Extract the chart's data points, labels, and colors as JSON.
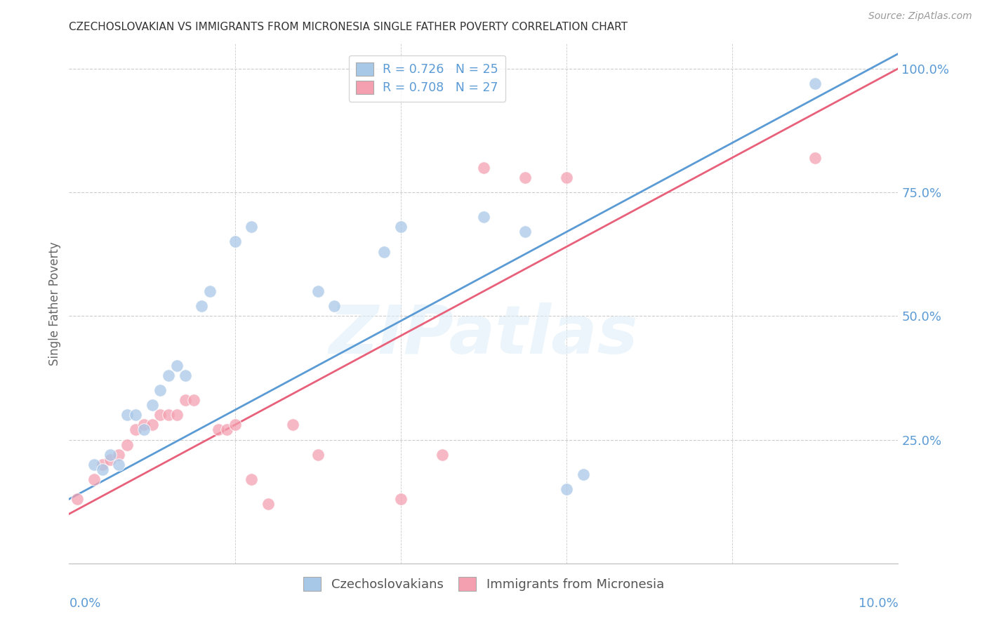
{
  "title": "CZECHOSLOVAKIAN VS IMMIGRANTS FROM MICRONESIA SINGLE FATHER POVERTY CORRELATION CHART",
  "source": "Source: ZipAtlas.com",
  "ylabel": "Single Father Poverty",
  "legend_blue": "R = 0.726   N = 25",
  "legend_pink": "R = 0.708   N = 27",
  "legend_blue_label": "Czechoslovakians",
  "legend_pink_label": "Immigrants from Micronesia",
  "watermark": "ZIPatlas",
  "blue_color": "#a8c8e8",
  "pink_color": "#f4a0b0",
  "blue_line_color": "#5b9bd5",
  "pink_line_color": "#e8607a",
  "right_axis_color": "#5b9bd5",
  "blue_scatter": [
    [
      0.003,
      0.2
    ],
    [
      0.004,
      0.19
    ],
    [
      0.005,
      0.22
    ],
    [
      0.006,
      0.2
    ],
    [
      0.007,
      0.3
    ],
    [
      0.008,
      0.3
    ],
    [
      0.009,
      0.27
    ],
    [
      0.01,
      0.32
    ],
    [
      0.011,
      0.35
    ],
    [
      0.012,
      0.38
    ],
    [
      0.013,
      0.4
    ],
    [
      0.014,
      0.38
    ],
    [
      0.016,
      0.52
    ],
    [
      0.017,
      0.55
    ],
    [
      0.02,
      0.65
    ],
    [
      0.022,
      0.68
    ],
    [
      0.03,
      0.55
    ],
    [
      0.032,
      0.52
    ],
    [
      0.038,
      0.63
    ],
    [
      0.04,
      0.68
    ],
    [
      0.05,
      0.7
    ],
    [
      0.055,
      0.67
    ],
    [
      0.06,
      0.15
    ],
    [
      0.062,
      0.18
    ],
    [
      0.09,
      0.97
    ]
  ],
  "pink_scatter": [
    [
      0.001,
      0.13
    ],
    [
      0.003,
      0.17
    ],
    [
      0.004,
      0.2
    ],
    [
      0.005,
      0.21
    ],
    [
      0.006,
      0.22
    ],
    [
      0.007,
      0.24
    ],
    [
      0.008,
      0.27
    ],
    [
      0.009,
      0.28
    ],
    [
      0.01,
      0.28
    ],
    [
      0.011,
      0.3
    ],
    [
      0.012,
      0.3
    ],
    [
      0.013,
      0.3
    ],
    [
      0.014,
      0.33
    ],
    [
      0.015,
      0.33
    ],
    [
      0.018,
      0.27
    ],
    [
      0.019,
      0.27
    ],
    [
      0.02,
      0.28
    ],
    [
      0.022,
      0.17
    ],
    [
      0.024,
      0.12
    ],
    [
      0.027,
      0.28
    ],
    [
      0.03,
      0.22
    ],
    [
      0.04,
      0.13
    ],
    [
      0.045,
      0.22
    ],
    [
      0.05,
      0.8
    ],
    [
      0.055,
      0.78
    ],
    [
      0.06,
      0.78
    ],
    [
      0.09,
      0.82
    ]
  ],
  "blue_line_x": [
    0.0,
    0.1
  ],
  "blue_line_y": [
    0.13,
    1.03
  ],
  "pink_line_x": [
    0.0,
    0.1
  ],
  "pink_line_y": [
    0.1,
    1.0
  ],
  "xlim": [
    0.0,
    0.1
  ],
  "ylim": [
    0.0,
    1.05
  ],
  "xtick_positions": [
    0.0,
    0.02,
    0.04,
    0.06,
    0.08,
    0.1
  ],
  "ytick_positions": [
    0.25,
    0.5,
    0.75,
    1.0
  ],
  "ytick_labels": [
    "25.0%",
    "50.0%",
    "75.0%",
    "100.0%"
  ]
}
